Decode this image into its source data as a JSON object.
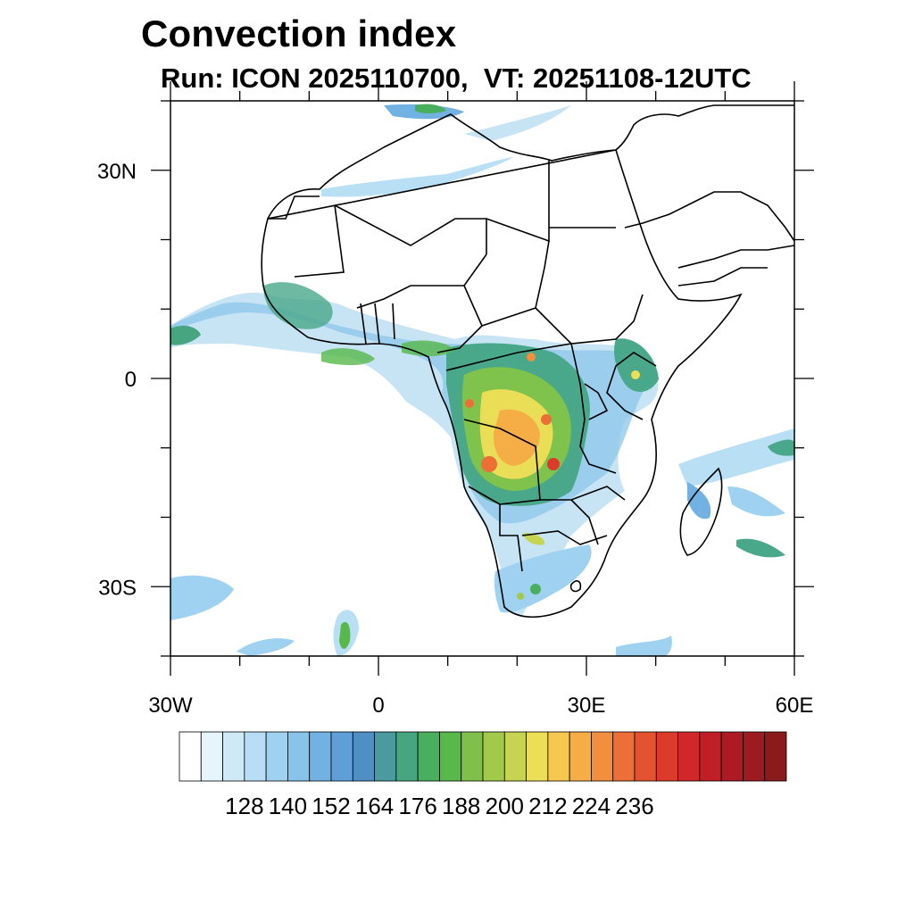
{
  "title": "Convection index",
  "subtitle": "Run: ICON 2025110700,  VT: 20251108-12UTC",
  "map": {
    "region": "Africa",
    "lon_range": [
      -30,
      60
    ],
    "lat_range": [
      -40,
      40
    ],
    "y_ticks": [
      {
        "value": 30,
        "label": "30N"
      },
      {
        "value": 0,
        "label": "0"
      },
      {
        "value": -30,
        "label": "30S"
      }
    ],
    "x_ticks": [
      {
        "value": -30,
        "label": "30W"
      },
      {
        "value": 0,
        "label": "0"
      },
      {
        "value": 30,
        "label": "30E"
      },
      {
        "value": 60,
        "label": "60E"
      }
    ]
  },
  "colorbar": {
    "labels": [
      "128",
      "140",
      "152",
      "164",
      "176",
      "188",
      "200",
      "212",
      "224",
      "236"
    ],
    "colors": [
      "#ffffff",
      "#e6f4fb",
      "#cfe9f7",
      "#b7def4",
      "#9fd2f0",
      "#88c3eb",
      "#72b2e3",
      "#5d9fd6",
      "#4f8fc6",
      "#4a9aa0",
      "#47a57f",
      "#49ae5e",
      "#58b84a",
      "#7ec04a",
      "#a3c94b",
      "#c7d44f",
      "#ecdf55",
      "#f7c84f",
      "#f5ad46",
      "#f28f3f",
      "#ed6f37",
      "#e45330",
      "#dc3b2c",
      "#d0282a",
      "#c11f28",
      "#ad1a24",
      "#9c1a20",
      "#8a1a1c"
    ]
  }
}
